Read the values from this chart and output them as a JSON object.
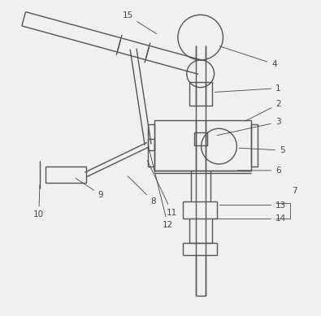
{
  "background_color": "#f0f0f0",
  "line_color": "#555555",
  "figsize": [
    3.95,
    3.89
  ],
  "dpi": 100,
  "lw": 1.0
}
